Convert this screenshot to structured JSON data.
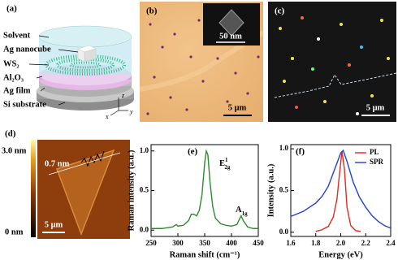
{
  "figure": {
    "a": {
      "panel_label": "(a)",
      "labels": [
        "Solvent",
        "Ag nanocube",
        "WS₂",
        "Al₂O₃",
        "Ag film",
        "Si substrate"
      ],
      "axes": [
        "z",
        "x",
        "y"
      ]
    },
    "b": {
      "panel_label": "(b)",
      "inset_scale": "50 nm",
      "scale": "5 μm"
    },
    "c": {
      "panel_label": "(c)",
      "scale": "5 μm"
    },
    "d": {
      "panel_label": "(d)",
      "colorbar_max": "3.0 nm",
      "colorbar_min": "0 nm",
      "height": "0.7 nm",
      "scale": "5 μm"
    }
  },
  "chart_data": [
    {
      "type": "line",
      "panel_label": "(e)",
      "xlabel": "Raman shift (cm⁻¹)",
      "ylabel": "Raman intensity (a.u.)",
      "xlim": [
        250,
        450
      ],
      "ylim": [
        -0.08,
        1.08
      ],
      "xticks": [
        250,
        300,
        350,
        400,
        450
      ],
      "yticks": [
        {
          "value": 0,
          "label": "0.0"
        },
        {
          "value": 0.5,
          "label": "0.5"
        },
        {
          "value": 1,
          "label": "1.0"
        }
      ],
      "series": [
        {
          "color": "#2e8b2e",
          "x": [
            250,
            260,
            270,
            280,
            290,
            297,
            300,
            310,
            320,
            325,
            330,
            335,
            340,
            345,
            350,
            353,
            356,
            360,
            365,
            370,
            380,
            390,
            400,
            410,
            415,
            418,
            422,
            430,
            440,
            450
          ],
          "values": [
            0.02,
            0.02,
            0.02,
            0.03,
            0.04,
            0.07,
            0.05,
            0.06,
            0.12,
            0.2,
            0.2,
            0.18,
            0.25,
            0.45,
            0.85,
            1.0,
            0.95,
            0.6,
            0.3,
            0.15,
            0.08,
            0.06,
            0.05,
            0.07,
            0.14,
            0.18,
            0.12,
            0.04,
            0.02,
            0.02
          ]
        }
      ],
      "annotations": [
        {
          "base": "E",
          "sup": "1",
          "sub": "2g"
        },
        {
          "base": "A",
          "sub": "1g"
        }
      ]
    },
    {
      "type": "line",
      "panel_label": "(f)",
      "xlabel": "Energy (eV)",
      "ylabel": "Intensity (a.u.)",
      "xlim": [
        1.6,
        2.4
      ],
      "ylim": [
        -0.05,
        1.05
      ],
      "xticks": [
        1.6,
        1.8,
        {
          "value": 2.0,
          "label": "2.0"
        },
        2.2,
        2.4
      ],
      "yticks": [
        {
          "value": 0,
          "label": "0.0"
        },
        {
          "value": 0.5,
          "label": "0.5"
        },
        {
          "value": 1,
          "label": "1.0"
        }
      ],
      "legend": "upper right",
      "series": [
        {
          "name": "PL",
          "color": "#e8281e",
          "x": [
            1.8,
            1.85,
            1.9,
            1.94,
            1.97,
            1.99,
            2.01,
            2.03,
            2.05,
            2.08,
            2.12,
            2.16
          ],
          "values": [
            0.01,
            0.03,
            0.07,
            0.18,
            0.4,
            0.7,
            0.97,
            0.75,
            0.3,
            0.08,
            0.02,
            0.01
          ]
        },
        {
          "name": "SPR",
          "color": "#1f3fd6",
          "x": [
            1.6,
            1.7,
            1.8,
            1.85,
            1.9,
            1.95,
            2.0,
            2.02,
            2.05,
            2.1,
            2.15,
            2.2,
            2.25,
            2.3,
            2.35,
            2.4
          ],
          "values": [
            0.19,
            0.25,
            0.35,
            0.43,
            0.55,
            0.75,
            0.95,
            0.98,
            0.85,
            0.6,
            0.42,
            0.3,
            0.2,
            0.13,
            0.08,
            0.05
          ]
        }
      ]
    }
  ]
}
